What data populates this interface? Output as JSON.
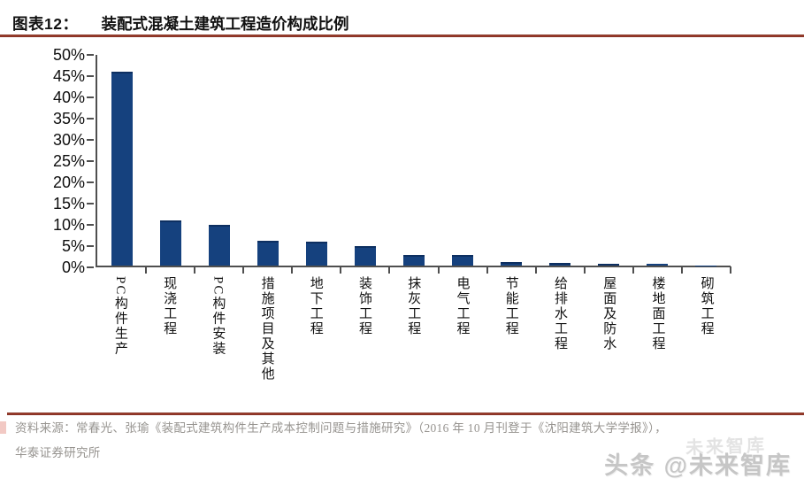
{
  "header": {
    "figure_label": "图表12：",
    "figure_title": "装配式混凝土建筑工程造价构成比例"
  },
  "chart_data": {
    "type": "bar",
    "title": "装配式混凝土建筑工程造价构成比例",
    "categories": [
      "PC构件生产",
      "现浇工程",
      "PC构件安装",
      "措施项目及其他",
      "地下工程",
      "装饰工程",
      "抹灰工程",
      "电气工程",
      "节能工程",
      "给排水工程",
      "屋面及防水",
      "楼地面工程",
      "砌筑工程"
    ],
    "values": [
      46,
      11,
      10,
      6.2,
      6,
      5,
      3,
      3,
      1.3,
      1,
      0.7,
      0.4,
      0.1
    ],
    "unit": "%",
    "xlabel": "",
    "ylabel": "",
    "ylim": [
      0,
      50
    ],
    "ytick_step": 5,
    "ytick_labels": [
      "0%",
      "5%",
      "10%",
      "15%",
      "20%",
      "25%",
      "30%",
      "35%",
      "40%",
      "45%",
      "50%"
    ],
    "grid": false,
    "legend": false,
    "bar_color": "#15417e",
    "axis_color": "#4f4f4f"
  },
  "footer": {
    "source_line1": "资料来源：常春光、张瑜《装配式建筑构件生产成本控制问题与措施研究》（2016 年 10 月刊登于《沈阳建筑大学学报》），",
    "source_line2": "华泰证券研究所",
    "watermark": "头条 @未来智库",
    "watermark_ghost": "未来智库"
  },
  "colors": {
    "accent_rule": "#9e3a2b",
    "bar": "#15417e",
    "axis": "#4f4f4f",
    "source_text": "#979490",
    "watermark": "#c6c6c6"
  }
}
